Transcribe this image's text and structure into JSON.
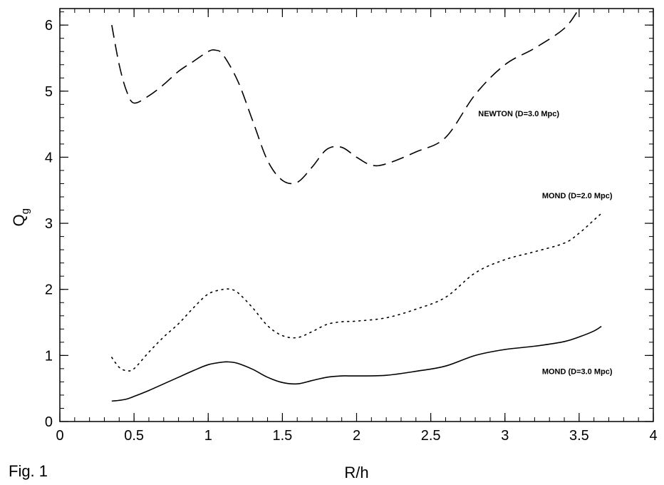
{
  "figure_label": "Fig. 1",
  "chart_data": {
    "type": "line",
    "xlabel": "R/h",
    "ylabel_main": "Q",
    "ylabel_sub": "g",
    "xlim": [
      0,
      4
    ],
    "ylim": [
      0,
      6.25
    ],
    "x_ticks": [
      "0",
      "0.5",
      "1",
      "1.5",
      "2",
      "2.5",
      "3",
      "3.5",
      "4"
    ],
    "x_tick_values": [
      0,
      0.5,
      1,
      1.5,
      2,
      2.5,
      3,
      3.5,
      4
    ],
    "y_ticks": [
      "0",
      "1",
      "2",
      "3",
      "4",
      "5",
      "6"
    ],
    "y_tick_values": [
      0,
      1,
      2,
      3,
      4,
      5,
      6
    ],
    "grid": false,
    "series": [
      {
        "name": "NEWTON (D=3.0 Mpc)",
        "style": "dashed",
        "x": [
          0.35,
          0.4,
          0.45,
          0.5,
          0.6,
          0.7,
          0.8,
          0.9,
          1.0,
          1.05,
          1.1,
          1.2,
          1.3,
          1.4,
          1.5,
          1.6,
          1.7,
          1.8,
          1.9,
          2.0,
          2.1,
          2.2,
          2.4,
          2.6,
          2.8,
          3.0,
          3.2,
          3.4,
          3.5
        ],
        "y": [
          6.0,
          5.4,
          5.0,
          4.82,
          4.93,
          5.1,
          5.3,
          5.45,
          5.6,
          5.62,
          5.55,
          5.15,
          4.55,
          3.95,
          3.65,
          3.62,
          3.85,
          4.12,
          4.15,
          4.0,
          3.88,
          3.9,
          4.08,
          4.3,
          4.95,
          5.4,
          5.65,
          5.95,
          6.25
        ]
      },
      {
        "name": "MOND (D=2.0 Mpc)",
        "style": "dotted",
        "x": [
          0.35,
          0.4,
          0.45,
          0.5,
          0.6,
          0.7,
          0.8,
          0.9,
          1.0,
          1.1,
          1.15,
          1.2,
          1.3,
          1.4,
          1.5,
          1.6,
          1.7,
          1.8,
          1.9,
          2.0,
          2.2,
          2.4,
          2.6,
          2.8,
          3.0,
          3.2,
          3.4,
          3.5,
          3.6,
          3.65
        ],
        "y": [
          0.97,
          0.82,
          0.77,
          0.8,
          1.05,
          1.28,
          1.48,
          1.72,
          1.93,
          2.0,
          2.0,
          1.95,
          1.72,
          1.45,
          1.3,
          1.27,
          1.36,
          1.47,
          1.51,
          1.52,
          1.57,
          1.7,
          1.88,
          2.25,
          2.45,
          2.57,
          2.7,
          2.85,
          3.05,
          3.15
        ]
      },
      {
        "name": "MOND (D=3.0 Mpc)",
        "style": "solid",
        "x": [
          0.35,
          0.4,
          0.45,
          0.5,
          0.6,
          0.7,
          0.8,
          0.9,
          1.0,
          1.1,
          1.15,
          1.2,
          1.3,
          1.4,
          1.5,
          1.6,
          1.7,
          1.8,
          1.9,
          2.0,
          2.2,
          2.4,
          2.6,
          2.8,
          3.0,
          3.2,
          3.4,
          3.5,
          3.6,
          3.65
        ],
        "y": [
          0.31,
          0.32,
          0.34,
          0.38,
          0.47,
          0.57,
          0.67,
          0.77,
          0.86,
          0.9,
          0.9,
          0.88,
          0.79,
          0.67,
          0.59,
          0.57,
          0.62,
          0.67,
          0.69,
          0.69,
          0.7,
          0.76,
          0.84,
          1.0,
          1.09,
          1.14,
          1.21,
          1.28,
          1.37,
          1.44
        ]
      }
    ],
    "annotations": [
      {
        "text": "NEWTON (D=3.0 Mpc)",
        "x": 2.82,
        "y": 4.62
      },
      {
        "text": "MOND (D=2.0 Mpc)",
        "x": 3.25,
        "y": 3.38
      },
      {
        "text": "MOND (D=3.0 Mpc)",
        "x": 3.25,
        "y": 0.72
      }
    ]
  }
}
